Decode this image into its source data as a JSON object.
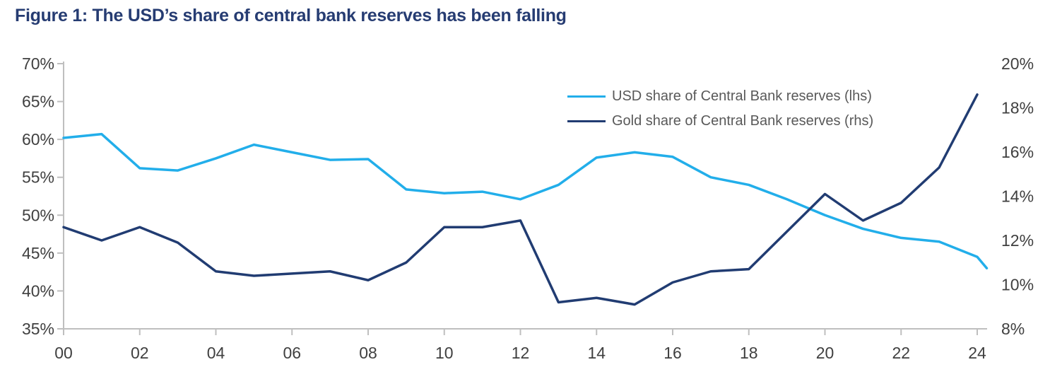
{
  "figure": {
    "title": "Figure 1: The USD’s share of central bank reserves has been falling"
  },
  "colors": {
    "title": "#263C72",
    "usd_line": "#22AEEA",
    "gold_line": "#213C72",
    "axis_line": "#BFBFBF",
    "axis_text": "#404040",
    "legend_text": "#595959",
    "background": "#FFFFFF"
  },
  "chart_data": {
    "type": "line",
    "title": "Figure 1: The USD’s share of central bank reserves has been falling",
    "grid": false,
    "legend_position": "top-right-inside",
    "x_tick_labels": [
      "00",
      "02",
      "04",
      "06",
      "08",
      "10",
      "12",
      "14",
      "16",
      "18",
      "20",
      "22",
      "24"
    ],
    "left_axis": {
      "ticks": [
        "70%",
        "65%",
        "60%",
        "55%",
        "50%",
        "45%",
        "40%",
        "35%"
      ],
      "range": [
        35,
        70
      ],
      "unit": "%"
    },
    "right_axis": {
      "ticks": [
        "20%",
        "18%",
        "16%",
        "14%",
        "12%",
        "10%",
        "8%"
      ],
      "range": [
        8,
        20
      ],
      "unit": "%"
    },
    "series": [
      {
        "name": "USD share of Central Bank reserves (lhs)",
        "axis": "left",
        "color": "#22AEEA",
        "x": [
          0,
          1,
          2,
          3,
          4,
          5,
          6,
          7,
          8,
          9,
          10,
          11,
          12,
          13,
          14,
          15,
          16,
          17,
          18,
          19,
          20,
          21,
          22,
          23,
          24,
          24.25
        ],
        "values": [
          60.2,
          60.7,
          56.2,
          55.9,
          57.5,
          59.3,
          58.3,
          57.3,
          57.4,
          53.4,
          52.9,
          53.1,
          52.1,
          54.0,
          57.6,
          58.3,
          57.7,
          55.0,
          54.0,
          52.1,
          50.0,
          48.2,
          47.0,
          46.5,
          44.5,
          43.0
        ]
      },
      {
        "name": "Gold share of Central Bank reserves (rhs)",
        "axis": "right",
        "color": "#213C72",
        "x": [
          0,
          1,
          2,
          3,
          4,
          5,
          6,
          7,
          8,
          9,
          10,
          11,
          12,
          13,
          14,
          15,
          16,
          17,
          18,
          19,
          20,
          21,
          22,
          23,
          24
        ],
        "values": [
          12.6,
          12.0,
          12.6,
          11.9,
          10.6,
          10.4,
          10.5,
          10.6,
          10.2,
          11.0,
          12.6,
          12.6,
          12.9,
          9.2,
          9.4,
          9.1,
          10.1,
          10.6,
          10.7,
          12.4,
          14.1,
          12.9,
          13.7,
          15.3,
          18.6
        ]
      }
    ]
  }
}
